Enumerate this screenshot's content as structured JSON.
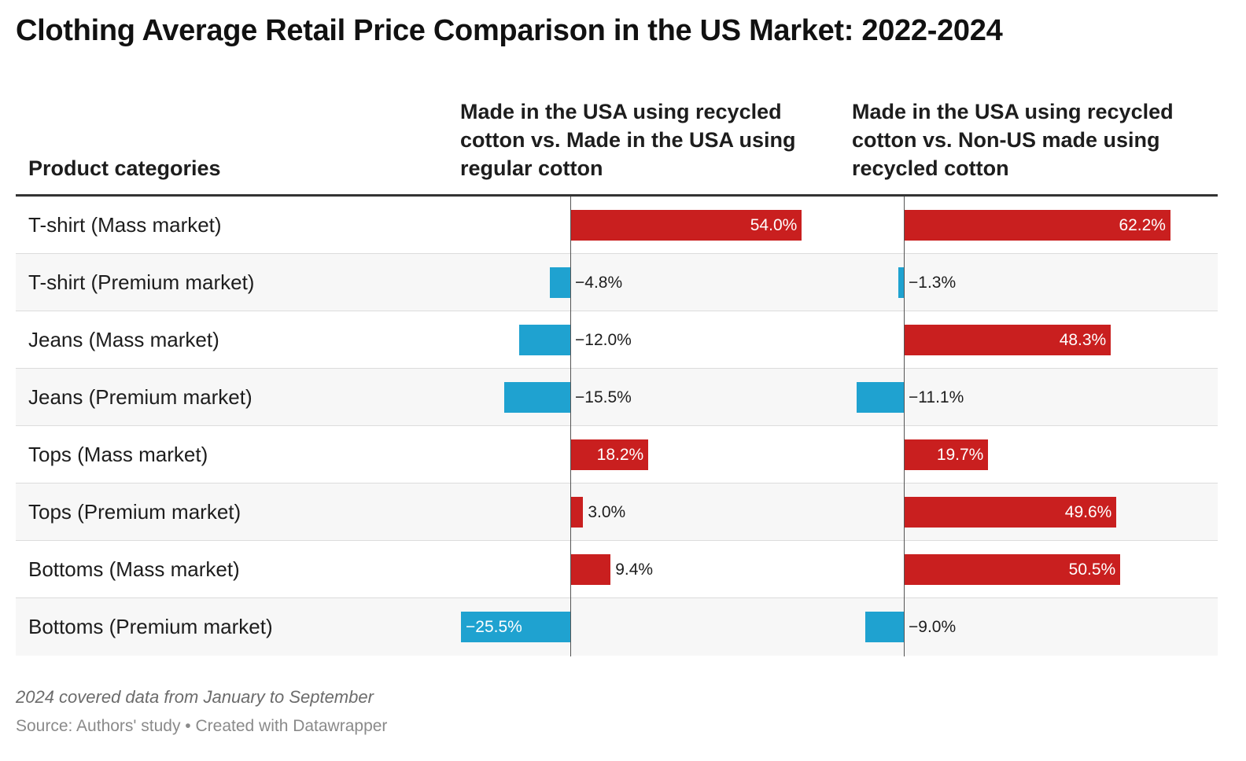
{
  "title": "Clothing Average Retail Price Comparison in the US Market: 2022-2024",
  "headers": {
    "category": "Product categories",
    "col1": "Made in the USA using recycled cotton vs. Made in the USA using regular cotton",
    "col2": "Made in the USA using recycled cotton vs. Non-US made using recycled cotton"
  },
  "colors": {
    "positive": "#c91f1f",
    "negative": "#1fa2d0"
  },
  "footer": {
    "note": "2024 covered data from January to September",
    "source": "Source: Authors' study • Created with Datawrapper"
  },
  "chart_data": {
    "type": "bar",
    "title": "Clothing Average Retail Price Comparison in the US Market: 2022-2024",
    "categories": [
      "T-shirt (Mass market)",
      "T-shirt (Premium market)",
      "Jeans (Mass market)",
      "Jeans (Premium market)",
      "Tops (Mass market)",
      "Tops (Premium market)",
      "Bottoms (Mass market)",
      "Bottoms (Premium market)"
    ],
    "series": [
      {
        "name": "Made in the USA using recycled cotton vs. Made in the USA using regular cotton",
        "values": [
          54.0,
          -4.8,
          -12.0,
          -15.5,
          18.2,
          3.0,
          9.4,
          -25.5
        ],
        "labels": [
          "54.0%",
          "−4.8%",
          "−12.0%",
          "−15.5%",
          "18.2%",
          "3.0%",
          "9.4%",
          "−25.5%"
        ]
      },
      {
        "name": "Made in the USA using recycled cotton vs. Non-US made using recycled cotton",
        "values": [
          62.2,
          -1.3,
          48.3,
          -11.1,
          19.7,
          49.6,
          50.5,
          -9.0
        ],
        "labels": [
          "62.2%",
          "−1.3%",
          "48.3%",
          "−11.1%",
          "19.7%",
          "49.6%",
          "50.5%",
          "−9.0%"
        ]
      }
    ],
    "unit": "%"
  }
}
